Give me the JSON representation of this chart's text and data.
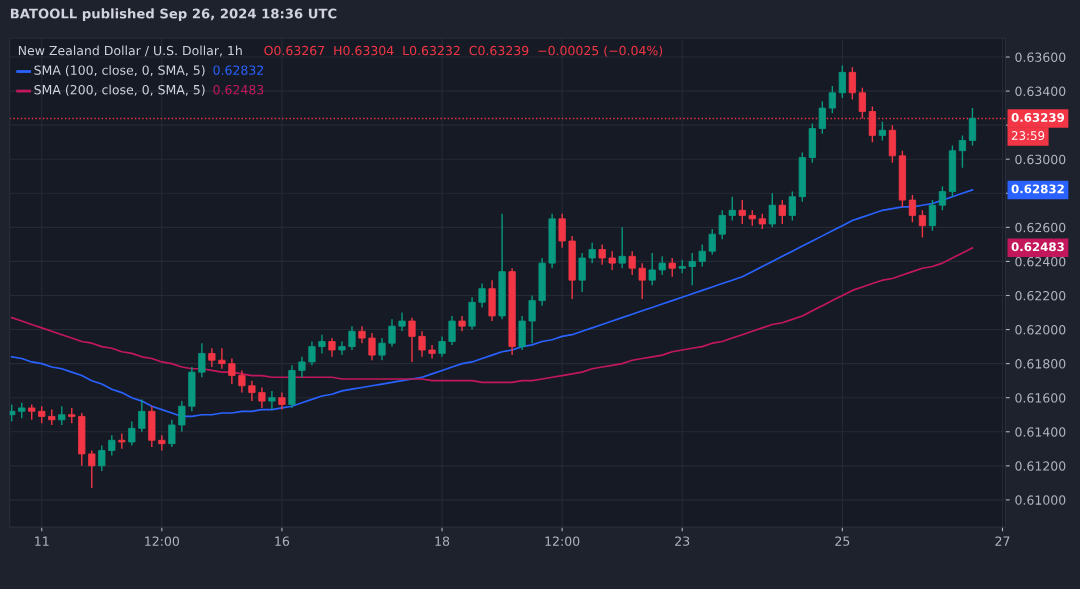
{
  "chart_data": {
    "type": "candlestick",
    "title": "New Zealand Dollar / U.S. Dollar, 1h",
    "subtitle": "BATOOLL published Sep 26, 2024 18:36 UTC",
    "categories": [
      null,
      null,
      null,
      "11",
      null,
      null,
      null,
      null,
      null,
      null,
      null,
      null,
      null,
      null,
      null,
      "12:00",
      null,
      null,
      null,
      null,
      null,
      null,
      null,
      null,
      null,
      null,
      null,
      "16",
      null,
      null,
      null,
      null,
      null,
      null,
      null,
      null,
      null,
      null,
      null,
      null,
      null,
      null,
      null,
      "18",
      null,
      null,
      null,
      null,
      null,
      null,
      null,
      null,
      null,
      null,
      null,
      "12:00",
      null,
      null,
      null,
      null,
      null,
      null,
      null,
      null,
      null,
      null,
      null,
      "23",
      null,
      null,
      null,
      null,
      null,
      null,
      null,
      null,
      null,
      null,
      null,
      null,
      null,
      null,
      null,
      "25",
      null,
      null,
      null,
      null,
      null,
      null,
      null,
      null,
      null,
      null,
      null,
      null,
      null,
      null,
      null,
      "27"
    ],
    "ohlc": [
      [
        0.615,
        0.6156,
        0.6146,
        0.6152
      ],
      [
        0.6152,
        0.6157,
        0.6148,
        0.6154
      ],
      [
        0.6154,
        0.6156,
        0.6147,
        0.6152
      ],
      [
        0.6152,
        0.6155,
        0.6145,
        0.6149
      ],
      [
        0.6149,
        0.6153,
        0.6144,
        0.6147
      ],
      [
        0.6147,
        0.6155,
        0.6144,
        0.615
      ],
      [
        0.615,
        0.6154,
        0.6145,
        0.6149
      ],
      [
        0.6149,
        0.6151,
        0.612,
        0.6127
      ],
      [
        0.6127,
        0.6129,
        0.6107,
        0.612
      ],
      [
        0.612,
        0.6132,
        0.6117,
        0.6129
      ],
      [
        0.6129,
        0.6138,
        0.6126,
        0.6135
      ],
      [
        0.6135,
        0.6139,
        0.613,
        0.6134
      ],
      [
        0.6134,
        0.6146,
        0.6132,
        0.6142
      ],
      [
        0.6142,
        0.6159,
        0.614,
        0.6152
      ],
      [
        0.6152,
        0.6155,
        0.6131,
        0.6135
      ],
      [
        0.6135,
        0.6138,
        0.6129,
        0.6133
      ],
      [
        0.6133,
        0.6147,
        0.6131,
        0.6144
      ],
      [
        0.6144,
        0.6158,
        0.614,
        0.6155
      ],
      [
        0.6155,
        0.6178,
        0.6152,
        0.6175
      ],
      [
        0.6175,
        0.6192,
        0.6172,
        0.6186
      ],
      [
        0.6186,
        0.6189,
        0.6178,
        0.6182
      ],
      [
        0.6182,
        0.6189,
        0.6177,
        0.618
      ],
      [
        0.618,
        0.6183,
        0.6168,
        0.6173
      ],
      [
        0.6173,
        0.6176,
        0.6163,
        0.6167
      ],
      [
        0.6167,
        0.617,
        0.6158,
        0.6163
      ],
      [
        0.6163,
        0.6166,
        0.6154,
        0.6158
      ],
      [
        0.6158,
        0.6164,
        0.6153,
        0.616
      ],
      [
        0.616,
        0.6163,
        0.6153,
        0.6156
      ],
      [
        0.6156,
        0.6179,
        0.6154,
        0.6176
      ],
      [
        0.6176,
        0.6184,
        0.6172,
        0.6181
      ],
      [
        0.6181,
        0.6193,
        0.6179,
        0.619
      ],
      [
        0.619,
        0.6197,
        0.6186,
        0.6193
      ],
      [
        0.6193,
        0.6195,
        0.6184,
        0.6188
      ],
      [
        0.6188,
        0.6193,
        0.6185,
        0.619
      ],
      [
        0.619,
        0.6202,
        0.6188,
        0.6199
      ],
      [
        0.6199,
        0.6202,
        0.6192,
        0.6195
      ],
      [
        0.6195,
        0.6198,
        0.6182,
        0.6185
      ],
      [
        0.6185,
        0.6195,
        0.6182,
        0.6192
      ],
      [
        0.6192,
        0.6206,
        0.619,
        0.6202
      ],
      [
        0.6202,
        0.621,
        0.6199,
        0.6205
      ],
      [
        0.6205,
        0.6207,
        0.6181,
        0.6196
      ],
      [
        0.6196,
        0.6199,
        0.6184,
        0.6188
      ],
      [
        0.6188,
        0.6191,
        0.6183,
        0.6186
      ],
      [
        0.6186,
        0.6196,
        0.6184,
        0.6193
      ],
      [
        0.6193,
        0.6208,
        0.6191,
        0.6205
      ],
      [
        0.6205,
        0.6208,
        0.6199,
        0.6202
      ],
      [
        0.6202,
        0.6219,
        0.62,
        0.6216
      ],
      [
        0.6216,
        0.6227,
        0.6213,
        0.6224
      ],
      [
        0.6224,
        0.6229,
        0.6205,
        0.6208
      ],
      [
        0.6208,
        0.6268,
        0.6206,
        0.6234
      ],
      [
        0.6234,
        0.6236,
        0.6185,
        0.619
      ],
      [
        0.619,
        0.6208,
        0.6188,
        0.6205
      ],
      [
        0.6205,
        0.622,
        0.6192,
        0.6217
      ],
      [
        0.6217,
        0.6242,
        0.6214,
        0.6239
      ],
      [
        0.6239,
        0.6268,
        0.6236,
        0.6265
      ],
      [
        0.6265,
        0.6268,
        0.6248,
        0.6252
      ],
      [
        0.6252,
        0.6255,
        0.6218,
        0.6229
      ],
      [
        0.6229,
        0.6245,
        0.6222,
        0.6242
      ],
      [
        0.6242,
        0.6251,
        0.6239,
        0.6247
      ],
      [
        0.6247,
        0.625,
        0.6238,
        0.6242
      ],
      [
        0.6242,
        0.6246,
        0.6235,
        0.6239
      ],
      [
        0.6239,
        0.626,
        0.6236,
        0.6243
      ],
      [
        0.6243,
        0.6246,
        0.6232,
        0.6236
      ],
      [
        0.6236,
        0.6239,
        0.6218,
        0.6229
      ],
      [
        0.6229,
        0.6245,
        0.6226,
        0.6235
      ],
      [
        0.6235,
        0.6243,
        0.6232,
        0.6239
      ],
      [
        0.6239,
        0.6242,
        0.6231,
        0.6236
      ],
      [
        0.6236,
        0.6241,
        0.6233,
        0.6237
      ],
      [
        0.6237,
        0.6245,
        0.6226,
        0.624
      ],
      [
        0.624,
        0.625,
        0.6237,
        0.6246
      ],
      [
        0.6246,
        0.6259,
        0.6244,
        0.6256
      ],
      [
        0.6256,
        0.627,
        0.6253,
        0.6267
      ],
      [
        0.6267,
        0.6278,
        0.6264,
        0.627
      ],
      [
        0.627,
        0.6276,
        0.6262,
        0.6267
      ],
      [
        0.6267,
        0.627,
        0.6261,
        0.6265
      ],
      [
        0.6265,
        0.6268,
        0.6259,
        0.6262
      ],
      [
        0.6262,
        0.628,
        0.626,
        0.6273
      ],
      [
        0.6273,
        0.6276,
        0.6262,
        0.6267
      ],
      [
        0.6267,
        0.6281,
        0.6264,
        0.6278
      ],
      [
        0.6278,
        0.6304,
        0.6275,
        0.6301
      ],
      [
        0.6301,
        0.6321,
        0.6298,
        0.6318
      ],
      [
        0.6318,
        0.6334,
        0.6315,
        0.633
      ],
      [
        0.633,
        0.6343,
        0.6327,
        0.6339
      ],
      [
        0.6339,
        0.6355,
        0.6336,
        0.6351
      ],
      [
        0.6351,
        0.6354,
        0.6335,
        0.6339
      ],
      [
        0.6339,
        0.6342,
        0.6324,
        0.6328
      ],
      [
        0.6328,
        0.6331,
        0.631,
        0.6314
      ],
      [
        0.6314,
        0.6322,
        0.6311,
        0.6317
      ],
      [
        0.6317,
        0.632,
        0.6298,
        0.6302
      ],
      [
        0.6302,
        0.6305,
        0.6272,
        0.6276
      ],
      [
        0.6276,
        0.6279,
        0.6263,
        0.6267
      ],
      [
        0.6267,
        0.627,
        0.6254,
        0.6261
      ],
      [
        0.6261,
        0.6276,
        0.6258,
        0.6273
      ],
      [
        0.6273,
        0.6284,
        0.627,
        0.6281
      ],
      [
        0.6281,
        0.6308,
        0.6278,
        0.6305
      ],
      [
        0.6305,
        0.6314,
        0.6295,
        0.6311
      ],
      [
        0.6311,
        0.633,
        0.6308,
        0.6324
      ],
      null,
      null,
      null
    ],
    "series": [
      {
        "type": "line",
        "name": "SMA (100, close, 0, SMA, 5)",
        "color": "#2962ff",
        "values": [
          0.6184,
          0.6183,
          0.6181,
          0.618,
          0.6178,
          0.6177,
          0.6175,
          0.6173,
          0.617,
          0.6168,
          0.6165,
          0.6163,
          0.616,
          0.6158,
          0.6155,
          0.6153,
          0.6151,
          0.6149,
          0.6149,
          0.615,
          0.615,
          0.6151,
          0.6151,
          0.6152,
          0.6152,
          0.6153,
          0.6153,
          0.6154,
          0.6155,
          0.6157,
          0.6159,
          0.6161,
          0.6162,
          0.6164,
          0.6165,
          0.6166,
          0.6167,
          0.6168,
          0.6169,
          0.617,
          0.6171,
          0.6172,
          0.6174,
          0.6176,
          0.6178,
          0.618,
          0.6181,
          0.6183,
          0.6185,
          0.6187,
          0.6188,
          0.619,
          0.6191,
          0.6193,
          0.6194,
          0.6196,
          0.6197,
          0.6199,
          0.6201,
          0.6203,
          0.6205,
          0.6207,
          0.6209,
          0.6211,
          0.6213,
          0.6215,
          0.6217,
          0.6219,
          0.6221,
          0.6223,
          0.6225,
          0.6227,
          0.6229,
          0.6231,
          0.6234,
          0.6237,
          0.624,
          0.6243,
          0.6246,
          0.6249,
          0.6252,
          0.6255,
          0.6258,
          0.6261,
          0.6264,
          0.6266,
          0.6268,
          0.627,
          0.6271,
          0.6272,
          0.6272,
          0.6273,
          0.6274,
          0.6276,
          0.6278,
          0.628,
          0.6282,
          null,
          null,
          null
        ]
      },
      {
        "type": "line",
        "name": "SMA (200, close, 0, SMA, 5)",
        "color": "#c2185b",
        "values": [
          0.6207,
          0.6205,
          0.6203,
          0.6201,
          0.6199,
          0.6197,
          0.6195,
          0.6193,
          0.6192,
          0.619,
          0.6189,
          0.6187,
          0.6186,
          0.6184,
          0.6183,
          0.6181,
          0.618,
          0.6178,
          0.6177,
          0.6177,
          0.6176,
          0.6175,
          0.6175,
          0.6174,
          0.6173,
          0.6173,
          0.6172,
          0.6172,
          0.6172,
          0.6172,
          0.6172,
          0.6172,
          0.6172,
          0.6171,
          0.6171,
          0.6171,
          0.6171,
          0.6171,
          0.6171,
          0.6171,
          0.6171,
          0.6171,
          0.617,
          0.617,
          0.617,
          0.617,
          0.617,
          0.6169,
          0.6169,
          0.6169,
          0.6169,
          0.617,
          0.617,
          0.6171,
          0.6172,
          0.6173,
          0.6174,
          0.6175,
          0.6177,
          0.6178,
          0.6179,
          0.618,
          0.6182,
          0.6183,
          0.6184,
          0.6185,
          0.6187,
          0.6188,
          0.6189,
          0.619,
          0.6192,
          0.6193,
          0.6195,
          0.6197,
          0.6199,
          0.6201,
          0.6203,
          0.6204,
          0.6206,
          0.6208,
          0.6211,
          0.6214,
          0.6217,
          0.622,
          0.6223,
          0.6225,
          0.6227,
          0.6229,
          0.623,
          0.6232,
          0.6234,
          0.6236,
          0.6237,
          0.6239,
          0.6242,
          0.6245,
          0.6248,
          null,
          null,
          null
        ]
      }
    ],
    "ylim": [
      0.6084,
      0.6371
    ],
    "yticks": [
      {
        "value": 0.61,
        "label": "0.61000"
      },
      {
        "value": 0.612,
        "label": "0.61200"
      },
      {
        "value": 0.614,
        "label": "0.61400"
      },
      {
        "value": 0.616,
        "label": "0.61600"
      },
      {
        "value": 0.618,
        "label": "0.61800"
      },
      {
        "value": 0.62,
        "label": "0.62000"
      },
      {
        "value": 0.622,
        "label": "0.62200"
      },
      {
        "value": 0.624,
        "label": "0.62400"
      },
      {
        "value": 0.626,
        "label": "0.62600"
      },
      {
        "value": 0.628,
        "label": null
      },
      {
        "value": 0.63,
        "label": "0.63000"
      },
      {
        "value": 0.632,
        "label": null
      },
      {
        "value": 0.634,
        "label": "0.63400"
      },
      {
        "value": 0.636,
        "label": "0.63600"
      }
    ],
    "ref_lines": [
      {
        "axis": "y",
        "value": 0.63239,
        "label": "0.63239",
        "color": "#f23645",
        "line_style": "dotted"
      }
    ],
    "annotations": [
      "O0.63267  H0.63304  L0.63232  C0.63239  −0.00025 (−0.04%)",
      "0.62832",
      "0.62483",
      "23:59",
      "0.62832",
      "0.62483"
    ],
    "grid": true,
    "legend": "top left"
  }
}
